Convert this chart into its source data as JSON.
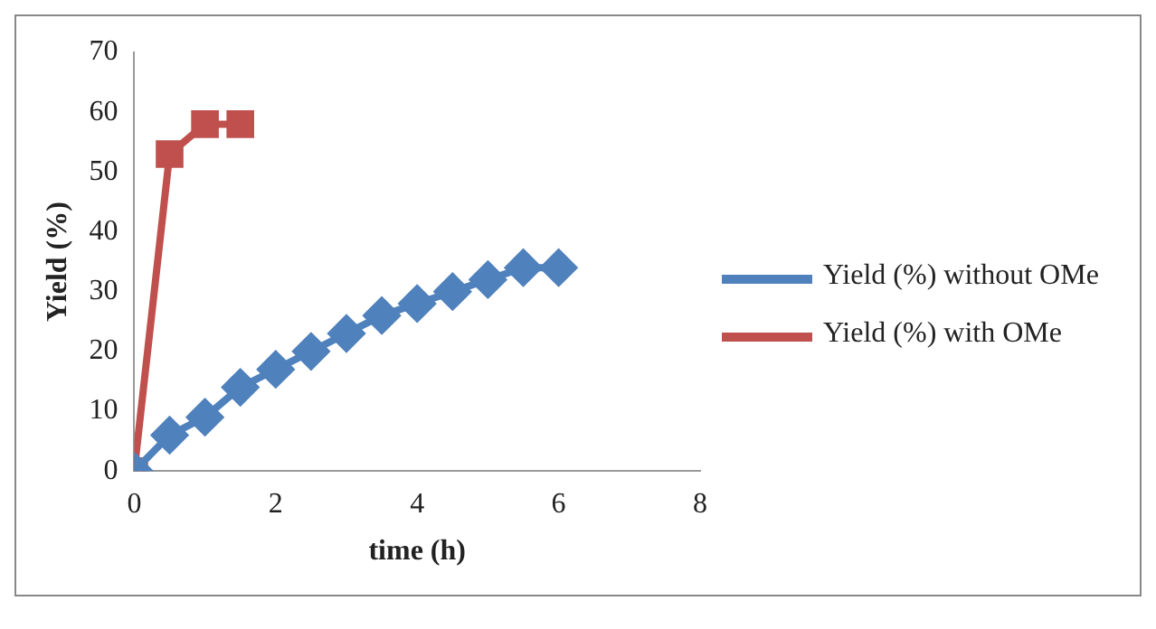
{
  "chart_data": {
    "type": "line",
    "xlabel": "time (h)",
    "ylabel": "Yield (%)",
    "xlim": [
      0,
      8
    ],
    "xticks": [
      0,
      2,
      4,
      6,
      8
    ],
    "ylim": [
      0,
      70
    ],
    "yticks": [
      0,
      10,
      20,
      30,
      40,
      50,
      60,
      70
    ],
    "grid": false,
    "legend": "right",
    "series": [
      {
        "name": "Yield (%) without OMe",
        "color": "#4f81bd",
        "marker": "diamond",
        "x": [
          0,
          0.5,
          1,
          1.5,
          2,
          2.5,
          3,
          3.5,
          4,
          4.5,
          5,
          5.5,
          6
        ],
        "values": [
          0,
          6,
          9,
          14,
          17,
          20,
          23,
          26,
          28,
          30,
          32,
          34,
          34
        ]
      },
      {
        "name": "Yield (%) with OMe",
        "color": "#c0504d",
        "marker": "square",
        "x": [
          0,
          0.5,
          1,
          1.5
        ],
        "values": [
          0,
          53,
          58,
          58
        ]
      }
    ]
  }
}
